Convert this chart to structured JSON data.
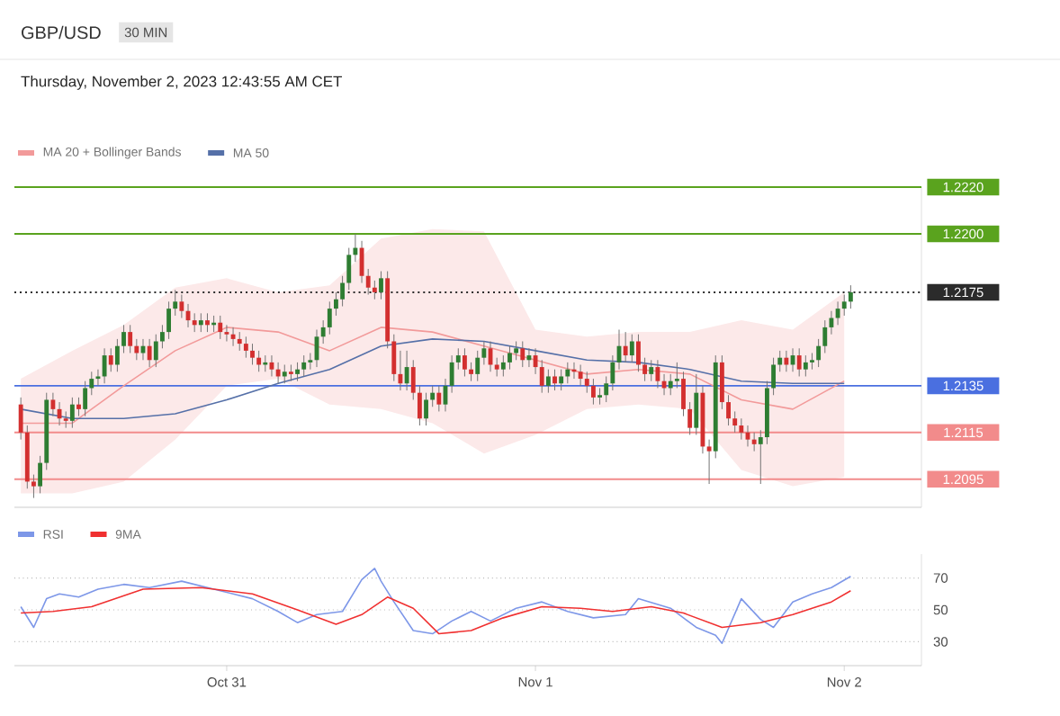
{
  "chart_data": [
    {
      "type": "candlestick",
      "title": "GBP/USD",
      "subtitle": "Thursday, November 2, 2023 12:43:55 AM CET",
      "annotations": [
        "30 MIN"
      ],
      "x": [
        "2023-10-30T08:00",
        "2023-10-30T08:30",
        "2023-10-30T09:00",
        "2023-10-30T09:30",
        "2023-10-30T10:00",
        "2023-10-30T10:30",
        "2023-10-30T11:00",
        "2023-10-30T11:30",
        "2023-10-30T12:00",
        "2023-10-30T12:30",
        "2023-10-30T13:00",
        "2023-10-30T13:30",
        "2023-10-30T14:00",
        "2023-10-30T14:30",
        "2023-10-30T15:00",
        "2023-10-30T15:30",
        "2023-10-30T16:00",
        "2023-10-30T16:30",
        "2023-10-30T17:00",
        "2023-10-30T17:30",
        "2023-10-30T18:00",
        "2023-10-30T18:30",
        "2023-10-30T19:00",
        "2023-10-30T19:30",
        "2023-10-30T20:00",
        "2023-10-30T20:30",
        "2023-10-30T21:00",
        "2023-10-30T21:30",
        "2023-10-30T22:00",
        "2023-10-30T22:30",
        "2023-10-30T23:00",
        "2023-10-30T23:30",
        "2023-10-31T00:00",
        "2023-10-31T00:30",
        "2023-10-31T01:00",
        "2023-10-31T01:30",
        "2023-10-31T02:00",
        "2023-10-31T02:30",
        "2023-10-31T03:00",
        "2023-10-31T03:30",
        "2023-10-31T04:00",
        "2023-10-31T04:30",
        "2023-10-31T05:00",
        "2023-10-31T05:30",
        "2023-10-31T06:00",
        "2023-10-31T06:30",
        "2023-10-31T07:00",
        "2023-10-31T07:30",
        "2023-10-31T08:00",
        "2023-10-31T08:30",
        "2023-10-31T09:00",
        "2023-10-31T09:30",
        "2023-10-31T10:00",
        "2023-10-31T10:30",
        "2023-10-31T11:00",
        "2023-10-31T11:30",
        "2023-10-31T12:00",
        "2023-10-31T12:30",
        "2023-10-31T13:00",
        "2023-10-31T13:30",
        "2023-10-31T14:00",
        "2023-10-31T14:30",
        "2023-10-31T15:00",
        "2023-10-31T15:30",
        "2023-10-31T16:00",
        "2023-10-31T16:30",
        "2023-10-31T17:00",
        "2023-10-31T17:30",
        "2023-10-31T18:00",
        "2023-10-31T18:30",
        "2023-10-31T19:00",
        "2023-10-31T19:30",
        "2023-10-31T20:00",
        "2023-10-31T20:30",
        "2023-10-31T21:00",
        "2023-10-31T21:30",
        "2023-10-31T22:00",
        "2023-10-31T22:30",
        "2023-10-31T23:00",
        "2023-10-31T23:30",
        "2023-11-01T00:00",
        "2023-11-01T00:30",
        "2023-11-01T01:00",
        "2023-11-01T01:30",
        "2023-11-01T02:00",
        "2023-11-01T02:30",
        "2023-11-01T03:00",
        "2023-11-01T03:30",
        "2023-11-01T04:00",
        "2023-11-01T04:30",
        "2023-11-01T05:00",
        "2023-11-01T05:30",
        "2023-11-01T06:00",
        "2023-11-01T06:30",
        "2023-11-01T07:00",
        "2023-11-01T07:30",
        "2023-11-01T08:00",
        "2023-11-01T08:30",
        "2023-11-01T09:00",
        "2023-11-01T09:30",
        "2023-11-01T10:00",
        "2023-11-01T10:30",
        "2023-11-01T11:00",
        "2023-11-01T11:30",
        "2023-11-01T12:00",
        "2023-11-01T12:30",
        "2023-11-01T13:00",
        "2023-11-01T13:30",
        "2023-11-01T14:00",
        "2023-11-01T14:30",
        "2023-11-01T15:00",
        "2023-11-01T15:30",
        "2023-11-01T16:00",
        "2023-11-01T16:30",
        "2023-11-01T17:00",
        "2023-11-01T17:30",
        "2023-11-01T18:00",
        "2023-11-01T18:30",
        "2023-11-01T19:00",
        "2023-11-01T19:30",
        "2023-11-01T20:00",
        "2023-11-01T20:30",
        "2023-11-01T21:00",
        "2023-11-01T21:30",
        "2023-11-01T22:00",
        "2023-11-01T22:30",
        "2023-11-01T23:00",
        "2023-11-01T23:30",
        "2023-11-02T00:00",
        "2023-11-02T00:30"
      ],
      "ohlc": [
        [
          1.2127,
          1.213,
          1.2112,
          1.2115
        ],
        [
          1.2115,
          1.2118,
          1.2091,
          1.2094
        ],
        [
          1.2094,
          1.2097,
          1.2087,
          1.2092
        ],
        [
          1.2092,
          1.2105,
          1.2089,
          1.2102
        ],
        [
          1.2102,
          1.2132,
          1.2099,
          1.2129
        ],
        [
          1.2129,
          1.2132,
          1.2122,
          1.2125
        ],
        [
          1.2125,
          1.2128,
          1.2118,
          1.2121
        ],
        [
          1.2121,
          1.2124,
          1.2117,
          1.212
        ],
        [
          1.212,
          1.213,
          1.2117,
          1.2127
        ],
        [
          1.2127,
          1.213,
          1.2122,
          1.2125
        ],
        [
          1.2125,
          1.2137,
          1.2122,
          1.2134
        ],
        [
          1.2134,
          1.2141,
          1.2131,
          1.2138
        ],
        [
          1.2138,
          1.2142,
          1.2135,
          1.2139
        ],
        [
          1.2139,
          1.2151,
          1.2136,
          1.2148
        ],
        [
          1.2148,
          1.2151,
          1.2141,
          1.2144
        ],
        [
          1.2144,
          1.2155,
          1.2141,
          1.2152
        ],
        [
          1.2152,
          1.2161,
          1.2149,
          1.2158
        ],
        [
          1.2158,
          1.2161,
          1.2149,
          1.2152
        ],
        [
          1.2152,
          1.2155,
          1.2146,
          1.2149
        ],
        [
          1.2149,
          1.2155,
          1.2146,
          1.2152
        ],
        [
          1.2152,
          1.2155,
          1.2143,
          1.2146
        ],
        [
          1.2146,
          1.2157,
          1.2143,
          1.2154
        ],
        [
          1.2154,
          1.2161,
          1.2151,
          1.2158
        ],
        [
          1.2158,
          1.2171,
          1.2155,
          1.2168
        ],
        [
          1.2168,
          1.2176,
          1.2165,
          1.2171
        ],
        [
          1.2171,
          1.2174,
          1.2164,
          1.2167
        ],
        [
          1.2167,
          1.217,
          1.216,
          1.2163
        ],
        [
          1.2163,
          1.2166,
          1.2158,
          1.2161
        ],
        [
          1.2161,
          1.2166,
          1.2158,
          1.2163
        ],
        [
          1.2163,
          1.2166,
          1.2158,
          1.2161
        ],
        [
          1.2161,
          1.2165,
          1.2158,
          1.2162
        ],
        [
          1.2162,
          1.2165,
          1.2155,
          1.2158
        ],
        [
          1.2158,
          1.2161,
          1.2154,
          1.2157
        ],
        [
          1.2157,
          1.216,
          1.2152,
          1.2155
        ],
        [
          1.2155,
          1.2158,
          1.215,
          1.2153
        ],
        [
          1.2153,
          1.2156,
          1.2147,
          1.215
        ],
        [
          1.215,
          1.2153,
          1.2144,
          1.2147
        ],
        [
          1.2147,
          1.215,
          1.2141,
          1.2144
        ],
        [
          1.2144,
          1.2148,
          1.2141,
          1.2145
        ],
        [
          1.2145,
          1.2148,
          1.2139,
          1.2142
        ],
        [
          1.2142,
          1.2145,
          1.2136,
          1.2139
        ],
        [
          1.2139,
          1.2144,
          1.2136,
          1.2141
        ],
        [
          1.2141,
          1.2144,
          1.2137,
          1.214
        ],
        [
          1.214,
          1.2145,
          1.2137,
          1.2142
        ],
        [
          1.2142,
          1.2148,
          1.2139,
          1.2145
        ],
        [
          1.2145,
          1.2149,
          1.2142,
          1.2146
        ],
        [
          1.2146,
          1.2159,
          1.2143,
          1.2156
        ],
        [
          1.2156,
          1.2163,
          1.2153,
          1.216
        ],
        [
          1.216,
          1.2171,
          1.2157,
          1.2168
        ],
        [
          1.2168,
          1.2175,
          1.2165,
          1.2172
        ],
        [
          1.2172,
          1.2182,
          1.2169,
          1.2179
        ],
        [
          1.2179,
          1.2194,
          1.2176,
          1.2191
        ],
        [
          1.2191,
          1.22,
          1.2188,
          1.2194
        ],
        [
          1.2194,
          1.2197,
          1.2179,
          1.2182
        ],
        [
          1.2182,
          1.2185,
          1.2174,
          1.2177
        ],
        [
          1.2177,
          1.218,
          1.2172,
          1.2175
        ],
        [
          1.2175,
          1.2184,
          1.2172,
          1.2181
        ],
        [
          1.2181,
          1.2184,
          1.2151,
          1.2154
        ],
        [
          1.2154,
          1.2157,
          1.2137,
          1.214
        ],
        [
          1.214,
          1.215,
          1.2133,
          1.2136
        ],
        [
          1.2136,
          1.215,
          1.2133,
          1.2143
        ],
        [
          1.2143,
          1.2146,
          1.2129,
          1.2132
        ],
        [
          1.2132,
          1.2135,
          1.2118,
          1.2121
        ],
        [
          1.2121,
          1.2132,
          1.2118,
          1.2129
        ],
        [
          1.2129,
          1.2135,
          1.2126,
          1.2132
        ],
        [
          1.2132,
          1.2135,
          1.2124,
          1.2127
        ],
        [
          1.2127,
          1.2138,
          1.2124,
          1.2135
        ],
        [
          1.2135,
          1.2148,
          1.2132,
          1.2145
        ],
        [
          1.2145,
          1.2151,
          1.2142,
          1.2148
        ],
        [
          1.2148,
          1.2151,
          1.2139,
          1.2142
        ],
        [
          1.2142,
          1.2145,
          1.2137,
          1.214
        ],
        [
          1.214,
          1.215,
          1.2137,
          1.2147
        ],
        [
          1.2147,
          1.2154,
          1.2144,
          1.2151
        ],
        [
          1.2151,
          1.2154,
          1.2141,
          1.2144
        ],
        [
          1.2144,
          1.2147,
          1.2139,
          1.2142
        ],
        [
          1.2142,
          1.2148,
          1.2139,
          1.2145
        ],
        [
          1.2145,
          1.2152,
          1.2142,
          1.2149
        ],
        [
          1.2149,
          1.2154,
          1.2146,
          1.2151
        ],
        [
          1.2151,
          1.2154,
          1.2143,
          1.2146
        ],
        [
          1.2146,
          1.2151,
          1.2143,
          1.2148
        ],
        [
          1.2148,
          1.2151,
          1.214,
          1.2143
        ],
        [
          1.2143,
          1.2146,
          1.2132,
          1.2135
        ],
        [
          1.2135,
          1.2142,
          1.2132,
          1.2139
        ],
        [
          1.2139,
          1.2142,
          1.2133,
          1.2136
        ],
        [
          1.2136,
          1.2142,
          1.2133,
          1.2139
        ],
        [
          1.2139,
          1.2145,
          1.2136,
          1.2142
        ],
        [
          1.2142,
          1.2145,
          1.2138,
          1.2141
        ],
        [
          1.2141,
          1.2144,
          1.2135,
          1.2138
        ],
        [
          1.2138,
          1.2141,
          1.2132,
          1.2135
        ],
        [
          1.2135,
          1.2138,
          1.2127,
          1.213
        ],
        [
          1.213,
          1.2134,
          1.2127,
          1.2131
        ],
        [
          1.2131,
          1.2139,
          1.2128,
          1.2136
        ],
        [
          1.2136,
          1.2148,
          1.2133,
          1.2145
        ],
        [
          1.2145,
          1.2159,
          1.2142,
          1.2152
        ],
        [
          1.2152,
          1.2158,
          1.2145,
          1.2148
        ],
        [
          1.2148,
          1.2157,
          1.2145,
          1.2154
        ],
        [
          1.2154,
          1.2157,
          1.2141,
          1.2144
        ],
        [
          1.2144,
          1.2147,
          1.2137,
          1.214
        ],
        [
          1.214,
          1.2146,
          1.2137,
          1.2143
        ],
        [
          1.2143,
          1.2146,
          1.2134,
          1.2137
        ],
        [
          1.2137,
          1.214,
          1.2131,
          1.2134
        ],
        [
          1.2134,
          1.214,
          1.2131,
          1.2137
        ],
        [
          1.2137,
          1.2145,
          1.2134,
          1.2138
        ],
        [
          1.2138,
          1.2141,
          1.2122,
          1.2125
        ],
        [
          1.2125,
          1.2128,
          1.2114,
          1.2117
        ],
        [
          1.2117,
          1.214,
          1.2114,
          1.2132
        ],
        [
          1.2132,
          1.2135,
          1.2106,
          1.2109
        ],
        [
          1.2109,
          1.2112,
          1.2093,
          1.2107
        ],
        [
          1.2107,
          1.2148,
          1.2104,
          1.2145
        ],
        [
          1.2145,
          1.2148,
          1.2125,
          1.2128
        ],
        [
          1.2128,
          1.2131,
          1.2118,
          1.2121
        ],
        [
          1.2121,
          1.2124,
          1.2115,
          1.2118
        ],
        [
          1.2118,
          1.2121,
          1.2112,
          1.2115
        ],
        [
          1.2115,
          1.2118,
          1.2109,
          1.2112
        ],
        [
          1.2112,
          1.2115,
          1.2107,
          1.211
        ],
        [
          1.211,
          1.2116,
          1.2093,
          1.2113
        ],
        [
          1.2113,
          1.2137,
          1.211,
          1.2134
        ],
        [
          1.2134,
          1.2147,
          1.2131,
          1.2144
        ],
        [
          1.2144,
          1.215,
          1.2141,
          1.2147
        ],
        [
          1.2147,
          1.215,
          1.2141,
          1.2144
        ],
        [
          1.2144,
          1.2151,
          1.2141,
          1.2148
        ],
        [
          1.2148,
          1.2151,
          1.2139,
          1.2142
        ],
        [
          1.2142,
          1.2148,
          1.2139,
          1.2145
        ],
        [
          1.2145,
          1.2149,
          1.2142,
          1.2146
        ],
        [
          1.2146,
          1.2155,
          1.2143,
          1.2152
        ],
        [
          1.2152,
          1.2163,
          1.2149,
          1.216
        ],
        [
          1.216,
          1.2167,
          1.2157,
          1.2164
        ],
        [
          1.2164,
          1.2171,
          1.2161,
          1.2168
        ],
        [
          1.2168,
          1.2174,
          1.2165,
          1.2171
        ],
        [
          1.2171,
          1.2178,
          1.2168,
          1.2175
        ]
      ],
      "xlim": [
        "2023-10-30T07:30",
        "2023-11-02T06:00"
      ],
      "ylim": [
        1.2083,
        1.222
      ],
      "yticks": [
        {
          "value": 1.2095,
          "label": "1.2095"
        },
        {
          "value": 1.2115,
          "label": "1.2115"
        },
        {
          "value": 1.2135,
          "label": "1.2135"
        },
        {
          "value": 1.2175,
          "label": "1.2175"
        },
        {
          "value": 1.22,
          "label": "1.2200"
        },
        {
          "value": 1.222,
          "label": "1.2220"
        }
      ],
      "tick_labels": "y",
      "legend": "top left",
      "series": [
        {
          "name": "MA 20 + Bollinger Bands",
          "type": "line",
          "color": "#f29a9a",
          "x": [
            "2023-10-30T08:00",
            "2023-10-30T12:00",
            "2023-10-30T16:00",
            "2023-10-30T20:00",
            "2023-10-31T00:00",
            "2023-10-31T04:00",
            "2023-10-31T08:00",
            "2023-10-31T12:00",
            "2023-10-31T16:00",
            "2023-10-31T20:00",
            "2023-11-01T00:00",
            "2023-11-01T04:00",
            "2023-11-01T08:00",
            "2023-11-01T12:00",
            "2023-11-01T16:00",
            "2023-11-01T20:00",
            "2023-11-02T00:00"
          ],
          "values": [
            1.2119,
            1.2119,
            1.2135,
            1.215,
            1.216,
            1.2158,
            1.215,
            1.216,
            1.2158,
            1.2152,
            1.2146,
            1.214,
            1.2142,
            1.214,
            1.2129,
            1.2125,
            1.2137
          ],
          "upper": [
            1.2138,
            1.215,
            1.2161,
            1.2177,
            1.2181,
            1.2175,
            1.2178,
            1.2198,
            1.2202,
            1.2201,
            1.2159,
            1.2156,
            1.2158,
            1.2158,
            1.2163,
            1.2159,
            1.2175
          ],
          "lower": [
            1.2089,
            1.2089,
            1.2094,
            1.2112,
            1.2135,
            1.2138,
            1.2127,
            1.2125,
            1.2119,
            1.2106,
            1.2114,
            1.2125,
            1.2127,
            1.2125,
            1.2099,
            1.2092,
            1.2096
          ]
        },
        {
          "name": "MA 50",
          "type": "line",
          "color": "#5570a8",
          "x": [
            "2023-10-30T08:00",
            "2023-10-30T12:00",
            "2023-10-30T16:00",
            "2023-10-30T20:00",
            "2023-10-31T00:00",
            "2023-10-31T04:00",
            "2023-10-31T08:00",
            "2023-10-31T12:00",
            "2023-10-31T16:00",
            "2023-10-31T20:00",
            "2023-11-01T00:00",
            "2023-11-01T04:00",
            "2023-11-01T08:00",
            "2023-11-01T12:00",
            "2023-11-01T16:00",
            "2023-11-01T20:00",
            "2023-11-02T00:00"
          ],
          "values": [
            1.2125,
            1.2121,
            1.2121,
            1.2123,
            1.2129,
            1.2136,
            1.2142,
            1.2152,
            1.2155,
            1.2154,
            1.215,
            1.2146,
            1.2145,
            1.2142,
            1.2137,
            1.2136,
            1.2136
          ]
        }
      ],
      "ref_lines": [
        {
          "axis": "y",
          "value": 1.222,
          "color": "#5aa31e"
        },
        {
          "axis": "y",
          "value": 1.22,
          "color": "#5aa31e"
        },
        {
          "axis": "y",
          "value": 1.2175,
          "color": "#2b2b2b",
          "line_style": "dotted"
        },
        {
          "axis": "y",
          "value": 1.2135,
          "color": "#4a6fe0"
        },
        {
          "axis": "y",
          "value": 1.2115,
          "color": "#f28b8b"
        },
        {
          "axis": "y",
          "value": 1.2095,
          "color": "#f28b8b"
        }
      ]
    },
    {
      "type": "line",
      "xlim": [
        "2023-10-30T07:30",
        "2023-11-02T06:00"
      ],
      "xticks": [
        {
          "value": "2023-10-31T00:00",
          "label": "Oct 31"
        },
        {
          "value": "2023-11-01T00:00",
          "label": "Nov 1"
        },
        {
          "value": "2023-11-02T00:00",
          "label": "Nov 2"
        }
      ],
      "ylim": [
        15,
        85
      ],
      "yticks": [
        30,
        50,
        70
      ],
      "grid": "y",
      "legend": "top left",
      "series": [
        {
          "name": "RSI",
          "color": "#7d97e8",
          "x": [
            "2023-10-30T08:00",
            "2023-10-30T09:00",
            "2023-10-30T10:00",
            "2023-10-30T11:00",
            "2023-10-30T12:30",
            "2023-10-30T14:00",
            "2023-10-30T16:00",
            "2023-10-30T18:00",
            "2023-10-30T20:30",
            "2023-10-30T23:00",
            "2023-10-31T02:00",
            "2023-10-31T04:00",
            "2023-10-31T05:30",
            "2023-10-31T07:00",
            "2023-10-31T09:00",
            "2023-10-31T10:30",
            "2023-10-31T11:30",
            "2023-10-31T12:00",
            "2023-10-31T13:00",
            "2023-10-31T14:30",
            "2023-10-31T16:00",
            "2023-10-31T17:30",
            "2023-10-31T19:00",
            "2023-10-31T20:30",
            "2023-10-31T22:30",
            "2023-11-01T00:30",
            "2023-11-01T02:30",
            "2023-11-01T04:30",
            "2023-11-01T07:00",
            "2023-11-01T08:00",
            "2023-11-01T10:30",
            "2023-11-01T12:30",
            "2023-11-01T14:00",
            "2023-11-01T14:30",
            "2023-11-01T16:00",
            "2023-11-01T17:30",
            "2023-11-01T18:30",
            "2023-11-01T20:00",
            "2023-11-01T21:30",
            "2023-11-01T23:00",
            "2023-11-02T00:30"
          ],
          "values": [
            52,
            39,
            57,
            60,
            58,
            63,
            66,
            64,
            68,
            63,
            57,
            49,
            42,
            47,
            49,
            69,
            76,
            68,
            55,
            37,
            35,
            43,
            49,
            43,
            51,
            55,
            49,
            45,
            47,
            57,
            51,
            39,
            34,
            29,
            57,
            44,
            39,
            55,
            60,
            64,
            71
          ]
        },
        {
          "name": "9MA",
          "color": "#f03030",
          "x": [
            "2023-10-30T08:00",
            "2023-10-30T10:30",
            "2023-10-30T13:30",
            "2023-10-30T17:30",
            "2023-10-30T22:00",
            "2023-10-31T02:00",
            "2023-10-31T05:30",
            "2023-10-31T08:30",
            "2023-10-31T10:30",
            "2023-10-31T12:30",
            "2023-10-31T14:30",
            "2023-10-31T16:30",
            "2023-10-31T19:00",
            "2023-10-31T21:30",
            "2023-11-01T00:30",
            "2023-11-01T03:30",
            "2023-11-01T06:00",
            "2023-11-01T09:00",
            "2023-11-01T11:30",
            "2023-11-01T14:30",
            "2023-11-01T17:30",
            "2023-11-01T20:00",
            "2023-11-01T23:00",
            "2023-11-02T00:30"
          ],
          "values": [
            48,
            49,
            52,
            63,
            64,
            60,
            50,
            41,
            47,
            58,
            51,
            35,
            37,
            45,
            52,
            51,
            49,
            52,
            48,
            39,
            42,
            47,
            55,
            62
          ]
        }
      ]
    }
  ]
}
